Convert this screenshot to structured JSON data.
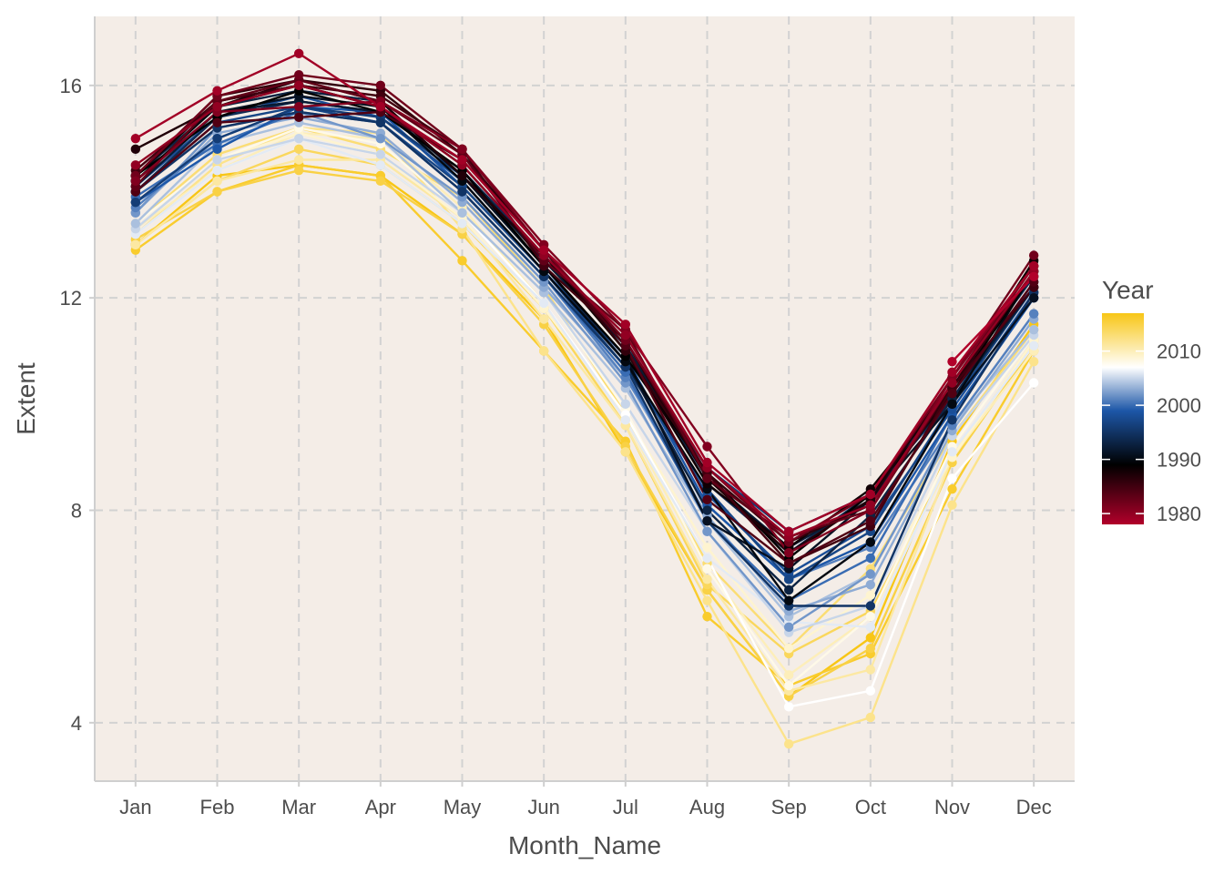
{
  "chart_data": {
    "type": "line",
    "title": "",
    "xlabel": "Month_Name",
    "ylabel": "Extent",
    "categories": [
      "Jan",
      "Feb",
      "Mar",
      "Apr",
      "May",
      "Jun",
      "Jul",
      "Aug",
      "Sep",
      "Oct",
      "Nov",
      "Dec"
    ],
    "ylim": [
      2.9,
      17.3
    ],
    "yticks": [
      4,
      8,
      12,
      16
    ],
    "grid": true,
    "background": "#f4ede7",
    "markers": true,
    "legend": {
      "title": "Year",
      "position": "right",
      "range": [
        1978,
        2017
      ],
      "ticks": [
        1980,
        1990,
        2000,
        2010
      ],
      "gradient": [
        {
          "year": 1978,
          "color": "#b2002a"
        },
        {
          "year": 1989,
          "color": "#000000"
        },
        {
          "year": 1999,
          "color": "#1d57a8"
        },
        {
          "year": 2007,
          "color": "#ffffff"
        },
        {
          "year": 2017,
          "color": "#f8c616"
        }
      ]
    },
    "series": [
      {
        "year": 1978,
        "values": [
          null,
          null,
          null,
          null,
          null,
          null,
          null,
          null,
          null,
          null,
          10.8,
          12.4
        ]
      },
      {
        "year": 1979,
        "values": [
          15.0,
          15.9,
          16.6,
          15.6,
          14.6,
          12.9,
          11.5,
          8.9,
          7.6,
          8.3,
          10.6,
          12.6
        ]
      },
      {
        "year": 1980,
        "values": [
          14.5,
          15.6,
          16.0,
          15.6,
          14.5,
          12.8,
          11.3,
          8.8,
          7.5,
          8.1,
          10.4,
          12.5
        ]
      },
      {
        "year": 1981,
        "values": [
          14.2,
          15.5,
          15.6,
          15.7,
          14.8,
          13.0,
          11.4,
          9.2,
          7.2,
          8.0,
          10.5,
          12.6
        ]
      },
      {
        "year": 1982,
        "values": [
          14.3,
          15.8,
          16.2,
          16.0,
          14.8,
          12.9,
          11.2,
          8.8,
          7.4,
          8.3,
          10.5,
          12.8
        ]
      },
      {
        "year": 1983,
        "values": [
          14.1,
          15.7,
          16.1,
          15.7,
          14.7,
          12.7,
          11.4,
          8.6,
          7.5,
          8.0,
          10.4,
          12.6
        ]
      },
      {
        "year": 1984,
        "values": [
          14.0,
          15.3,
          15.4,
          15.5,
          14.6,
          12.9,
          11.1,
          8.2,
          7.0,
          7.8,
          10.2,
          12.3
        ]
      },
      {
        "year": 1985,
        "values": [
          14.4,
          15.7,
          16.0,
          15.8,
          14.8,
          12.6,
          11.2,
          8.7,
          7.0,
          7.7,
          10.3,
          12.2
        ]
      },
      {
        "year": 1986,
        "values": [
          14.3,
          15.8,
          16.1,
          15.9,
          14.7,
          12.9,
          11.0,
          8.7,
          7.4,
          8.1,
          10.3,
          12.5
        ]
      },
      {
        "year": 1987,
        "values": [
          14.8,
          15.6,
          16.1,
          15.7,
          14.3,
          12.8,
          11.2,
          8.6,
          7.2,
          8.2,
          10.5,
          12.6
        ]
      },
      {
        "year": 1988,
        "values": [
          14.3,
          15.7,
          16.0,
          15.6,
          14.5,
          12.8,
          11.0,
          8.5,
          7.3,
          8.4,
          10.3,
          12.7
        ]
      },
      {
        "year": 1989,
        "values": [
          14.3,
          15.4,
          15.9,
          15.5,
          14.4,
          12.6,
          10.9,
          8.7,
          7.1,
          8.3,
          10.2,
          12.5
        ]
      },
      {
        "year": 1990,
        "values": [
          14.2,
          15.6,
          16.0,
          15.6,
          14.2,
          12.5,
          10.8,
          8.4,
          6.3,
          7.4,
          10.0,
          12.5
        ]
      },
      {
        "year": 1991,
        "values": [
          14.2,
          15.5,
          15.8,
          15.6,
          14.3,
          12.6,
          10.9,
          7.8,
          6.9,
          8.2,
          10.0,
          12.0
        ]
      },
      {
        "year": 1992,
        "values": [
          14.1,
          15.5,
          15.7,
          15.5,
          14.4,
          12.7,
          11.1,
          8.6,
          7.3,
          8.2,
          10.2,
          12.2
        ]
      },
      {
        "year": 1993,
        "values": [
          14.3,
          15.6,
          15.9,
          15.7,
          14.3,
          12.6,
          10.8,
          8.0,
          6.5,
          7.9,
          10.1,
          12.2
        ]
      },
      {
        "year": 1994,
        "values": [
          14.0,
          15.4,
          15.7,
          15.5,
          14.4,
          12.8,
          11.1,
          8.5,
          7.2,
          8.3,
          10.3,
          12.4
        ]
      },
      {
        "year": 1995,
        "values": [
          14.0,
          15.2,
          15.5,
          15.3,
          14.0,
          12.4,
          10.7,
          7.8,
          6.2,
          6.2,
          9.7,
          12.1
        ]
      },
      {
        "year": 1996,
        "values": [
          13.8,
          15.0,
          15.6,
          15.4,
          14.3,
          12.8,
          11.1,
          8.8,
          7.6,
          8.3,
          10.1,
          12.3
        ]
      },
      {
        "year": 1997,
        "values": [
          14.0,
          15.3,
          15.6,
          15.3,
          14.1,
          12.5,
          10.7,
          8.4,
          6.7,
          7.6,
          10.0,
          12.2
        ]
      },
      {
        "year": 1998,
        "values": [
          14.1,
          15.4,
          15.8,
          15.4,
          14.2,
          12.5,
          10.8,
          8.3,
          6.8,
          7.7,
          9.9,
          12.1
        ]
      },
      {
        "year": 1999,
        "values": [
          13.8,
          14.8,
          15.6,
          15.5,
          14.1,
          12.5,
          10.9,
          8.1,
          6.7,
          7.4,
          9.8,
          12.0
        ]
      },
      {
        "year": 2000,
        "values": [
          13.9,
          14.9,
          15.5,
          15.3,
          14.0,
          12.4,
          10.6,
          7.8,
          6.3,
          7.1,
          9.8,
          12.0
        ]
      },
      {
        "year": 2001,
        "values": [
          13.7,
          15.0,
          15.6,
          15.3,
          14.0,
          12.4,
          10.5,
          8.1,
          6.7,
          7.3,
          9.6,
          11.7
        ]
      },
      {
        "year": 2002,
        "values": [
          13.6,
          15.2,
          15.5,
          15.0,
          13.9,
          12.3,
          10.4,
          7.6,
          5.8,
          6.8,
          9.6,
          11.7
        ]
      },
      {
        "year": 2003,
        "values": [
          13.6,
          15.1,
          15.4,
          15.1,
          13.8,
          12.2,
          10.5,
          7.9,
          6.1,
          6.6,
          9.5,
          11.6
        ]
      },
      {
        "year": 2004,
        "values": [
          13.4,
          14.9,
          15.3,
          15.0,
          13.6,
          12.1,
          10.3,
          7.8,
          6.0,
          6.8,
          9.6,
          11.4
        ]
      },
      {
        "year": 2005,
        "values": [
          13.3,
          14.6,
          15.0,
          14.7,
          13.6,
          12.1,
          10.0,
          7.6,
          5.7,
          6.2,
          9.4,
          11.3
        ]
      },
      {
        "year": 2006,
        "values": [
          13.2,
          14.4,
          15.0,
          14.5,
          13.4,
          11.9,
          9.7,
          7.1,
          5.9,
          5.8,
          9.1,
          11.1
        ]
      },
      {
        "year": 2007,
        "values": [
          13.2,
          14.4,
          15.0,
          14.7,
          13.6,
          11.9,
          9.8,
          7.1,
          4.3,
          4.6,
          8.6,
          10.4
        ]
      },
      {
        "year": 2008,
        "values": [
          13.4,
          14.6,
          15.2,
          14.9,
          13.6,
          12.1,
          9.9,
          6.9,
          4.7,
          6.0,
          9.2,
          11.3
        ]
      },
      {
        "year": 2009,
        "values": [
          13.3,
          14.6,
          15.1,
          14.7,
          13.5,
          11.8,
          9.8,
          7.3,
          5.4,
          6.4,
          9.0,
          11.2
        ]
      },
      {
        "year": 2010,
        "values": [
          13.3,
          14.4,
          15.1,
          15.0,
          13.7,
          11.9,
          9.7,
          6.9,
          4.9,
          6.0,
          9.0,
          11.0
        ]
      },
      {
        "year": 2011,
        "values": [
          13.0,
          14.2,
          14.6,
          14.6,
          13.5,
          11.6,
          9.6,
          6.7,
          4.6,
          5.0,
          9.0,
          11.2
        ]
      },
      {
        "year": 2012,
        "values": [
          13.2,
          14.5,
          15.2,
          15.1,
          13.3,
          11.0,
          9.1,
          6.3,
          3.6,
          4.1,
          8.1,
          10.8
        ]
      },
      {
        "year": 2013,
        "values": [
          13.4,
          14.7,
          15.2,
          14.8,
          13.9,
          12.2,
          9.8,
          7.0,
          5.4,
          6.9,
          9.4,
          11.4
        ]
      },
      {
        "year": 2014,
        "values": [
          13.0,
          14.2,
          14.8,
          14.5,
          13.4,
          11.8,
          9.6,
          6.6,
          5.3,
          6.1,
          9.0,
          11.2
        ]
      },
      {
        "year": 2015,
        "values": [
          13.1,
          14.0,
          14.4,
          14.2,
          13.2,
          11.5,
          9.2,
          6.5,
          4.5,
          5.4,
          8.9,
          11.1
        ]
      },
      {
        "year": 2016,
        "values": [
          12.9,
          14.0,
          14.5,
          14.3,
          12.7,
          11.0,
          9.3,
          6.0,
          4.7,
          5.3,
          8.4,
          11.0
        ]
      },
      {
        "year": 2017,
        "values": [
          13.0,
          14.3,
          14.5,
          14.3,
          13.2,
          11.6,
          9.1,
          6.5,
          4.5,
          5.6,
          9.3,
          11.5
        ]
      }
    ]
  }
}
